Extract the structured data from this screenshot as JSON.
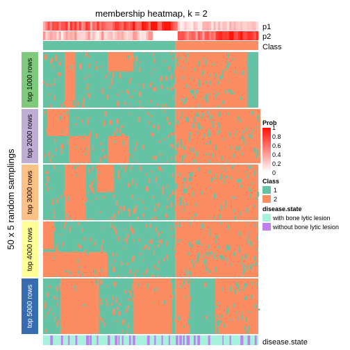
{
  "chart_data": {
    "type": "heatmap",
    "title": "membership heatmap, k = 2",
    "y_title": "50 x 5 random samplings",
    "annotation_rows": [
      "p1",
      "p2",
      "Class"
    ],
    "bottom_annotation": "disease.state",
    "groups": [
      {
        "label": "top 1000 rows"
      },
      {
        "label": "top 2000 rows"
      },
      {
        "label": "top 3000 rows"
      },
      {
        "label": "top 4000 rows"
      },
      {
        "label": "top 5000 rows"
      }
    ],
    "group_colors": [
      "#7FC97F",
      "#BEAED4",
      "#FDC086",
      "#FFFF99",
      "#386CB0"
    ],
    "class_split_fraction": 0.615,
    "legend": {
      "prob": {
        "title": "Prob",
        "ticks": [
          "1",
          "0.8",
          "0.6",
          "0.4",
          "0.2",
          "0"
        ]
      },
      "class": {
        "title": "Class",
        "items": [
          {
            "label": "1",
            "color": "#66C2A5"
          },
          {
            "label": "2",
            "color": "#FC8D62"
          }
        ]
      },
      "disease": {
        "title": "disease.state",
        "items": [
          {
            "label": "with bone lytic lesion",
            "color": "#A6F2DD"
          },
          {
            "label": "without bone lytic lesion",
            "color": "#C180F0"
          }
        ]
      }
    },
    "colors": {
      "class1": "#66C2A5",
      "class2": "#FC8D62",
      "prob_high": "#FF0000",
      "prob_low": "#FFFFFF"
    }
  }
}
